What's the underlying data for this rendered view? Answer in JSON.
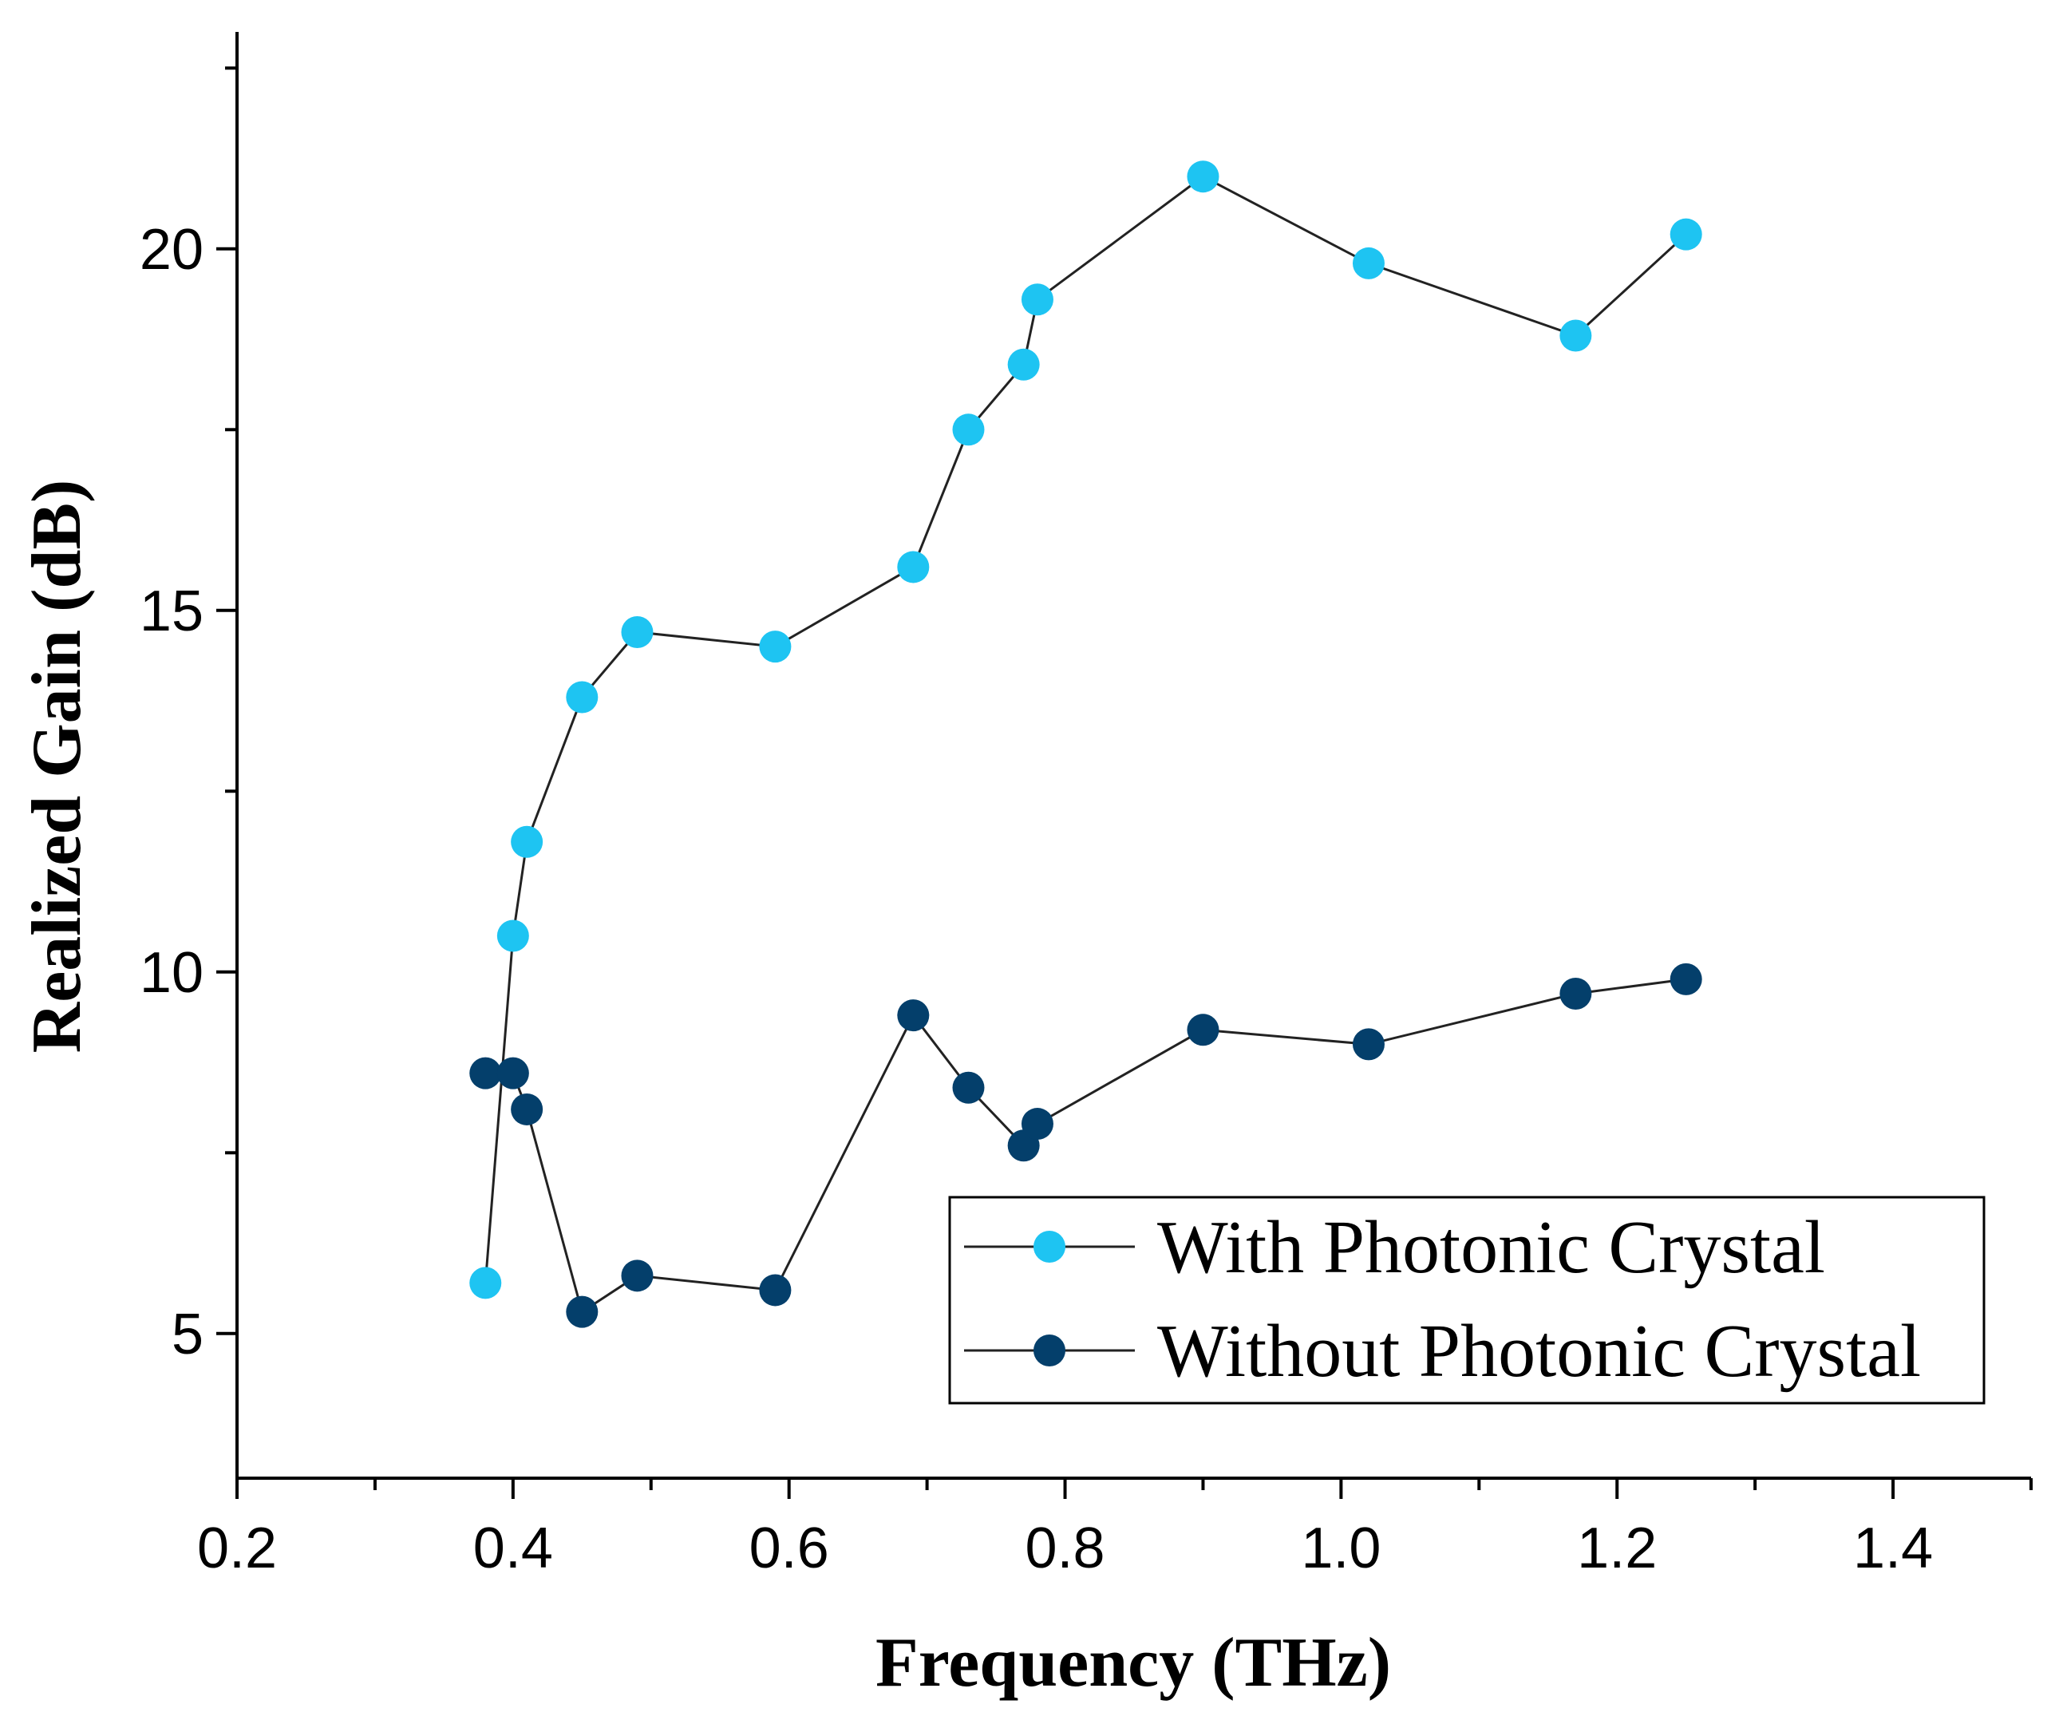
{
  "chart_data": {
    "type": "line",
    "title": "",
    "xlabel": "Frequency (THz)",
    "ylabel": "Realized Gain (dB)",
    "xlim": [
      0.2,
      1.5
    ],
    "ylim": [
      3,
      23
    ],
    "x_ticks": [
      0.2,
      0.4,
      0.6,
      0.8,
      1.0,
      1.2,
      1.4
    ],
    "x_tick_labels": [
      "0.2",
      "0.4",
      "0.6",
      "0.8",
      "1.0",
      "1.2",
      "1.4"
    ],
    "y_ticks": [
      5,
      10,
      15,
      20
    ],
    "y_tick_labels": [
      "5",
      "10",
      "15",
      "20"
    ],
    "grid": false,
    "legend_position": "bottom-right",
    "x": [
      0.38,
      0.4,
      0.41,
      0.45,
      0.49,
      0.59,
      0.69,
      0.73,
      0.77,
      0.78,
      0.9,
      1.02,
      1.17,
      1.25
    ],
    "series": [
      {
        "name": "With Photonic Crystal",
        "color": "#1ec4f2",
        "values": [
          5.7,
          10.5,
          11.8,
          13.8,
          14.7,
          14.5,
          15.6,
          17.5,
          18.4,
          19.3,
          21.0,
          19.8,
          18.8,
          20.2
        ]
      },
      {
        "name": "Without Photonic Crystal",
        "color": "#043f6b",
        "values": [
          8.6,
          8.6,
          8.1,
          5.3,
          5.8,
          5.6,
          9.4,
          8.4,
          7.6,
          7.9,
          9.2,
          9.0,
          9.7,
          9.9
        ]
      }
    ]
  }
}
